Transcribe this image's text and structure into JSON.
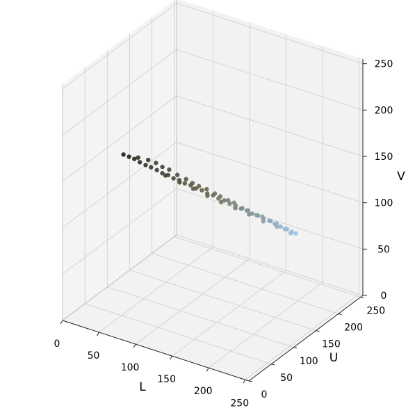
{
  "chart_data": {
    "type": "scatter",
    "projection": "3d",
    "title": "",
    "xlabel": "L",
    "ylabel": "U",
    "zlabel": "V",
    "xlim": [
      0,
      255
    ],
    "ylim": [
      0,
      255
    ],
    "zlim": [
      0,
      255
    ],
    "xticks": [
      "0",
      "50",
      "100",
      "150",
      "200",
      "250"
    ],
    "yticks": [
      "0",
      "50",
      "100",
      "150",
      "200",
      "250"
    ],
    "zticks": [
      "0",
      "50",
      "100",
      "150",
      "200",
      "250"
    ],
    "grid": true,
    "pane_color": "#f2f2f2",
    "grid_color": "#cccccc",
    "point_colors": {
      "dark": "#1a1a14",
      "mid": "#6b6a50",
      "light": "#9ec6ea"
    },
    "series": [
      {
        "points": [
          [
            5,
            128,
            134
          ],
          [
            12,
            129,
            133
          ],
          [
            20,
            128,
            133
          ],
          [
            28,
            127,
            132
          ],
          [
            36,
            127,
            131
          ],
          [
            44,
            126,
            131
          ],
          [
            52,
            126,
            130
          ],
          [
            60,
            125,
            129
          ],
          [
            68,
            125,
            129
          ],
          [
            76,
            124,
            128
          ],
          [
            84,
            124,
            128
          ],
          [
            92,
            123,
            127
          ],
          [
            100,
            123,
            127
          ],
          [
            108,
            122,
            126
          ],
          [
            116,
            122,
            126
          ],
          [
            124,
            121,
            125
          ],
          [
            132,
            121,
            125
          ],
          [
            140,
            120,
            124
          ],
          [
            148,
            120,
            124
          ],
          [
            156,
            119,
            123
          ],
          [
            164,
            119,
            123
          ],
          [
            172,
            118,
            122
          ],
          [
            180,
            118,
            122
          ],
          [
            188,
            117,
            121
          ],
          [
            196,
            117,
            121
          ],
          [
            204,
            116,
            120
          ],
          [
            212,
            116,
            120
          ],
          [
            220,
            115,
            119
          ],
          [
            228,
            115,
            118
          ],
          [
            236,
            114,
            118
          ],
          [
            244,
            114,
            117
          ],
          [
            250,
            113,
            117
          ],
          [
            30,
            120,
            140
          ],
          [
            45,
            118,
            142
          ],
          [
            55,
            119,
            141
          ],
          [
            65,
            117,
            140
          ],
          [
            75,
            116,
            140
          ],
          [
            85,
            118,
            136
          ],
          [
            95,
            121,
            133
          ],
          [
            105,
            119,
            132
          ],
          [
            115,
            117,
            132
          ],
          [
            125,
            118,
            131
          ],
          [
            135,
            120,
            128
          ],
          [
            145,
            116,
            129
          ],
          [
            155,
            117,
            127
          ],
          [
            165,
            114,
            128
          ],
          [
            175,
            116,
            124
          ],
          [
            185,
            113,
            125
          ],
          [
            195,
            115,
            122
          ],
          [
            205,
            112,
            124
          ],
          [
            215,
            114,
            121
          ],
          [
            225,
            111,
            122
          ],
          [
            235,
            113,
            118
          ],
          [
            240,
            110,
            120
          ],
          [
            60,
            132,
            124
          ],
          [
            80,
            131,
            122
          ],
          [
            100,
            129,
            121
          ],
          [
            120,
            128,
            119
          ],
          [
            140,
            126,
            118
          ],
          [
            160,
            125,
            117
          ],
          [
            180,
            123,
            116
          ],
          [
            200,
            122,
            114
          ],
          [
            220,
            120,
            114
          ],
          [
            240,
            118,
            113
          ]
        ]
      }
    ]
  }
}
